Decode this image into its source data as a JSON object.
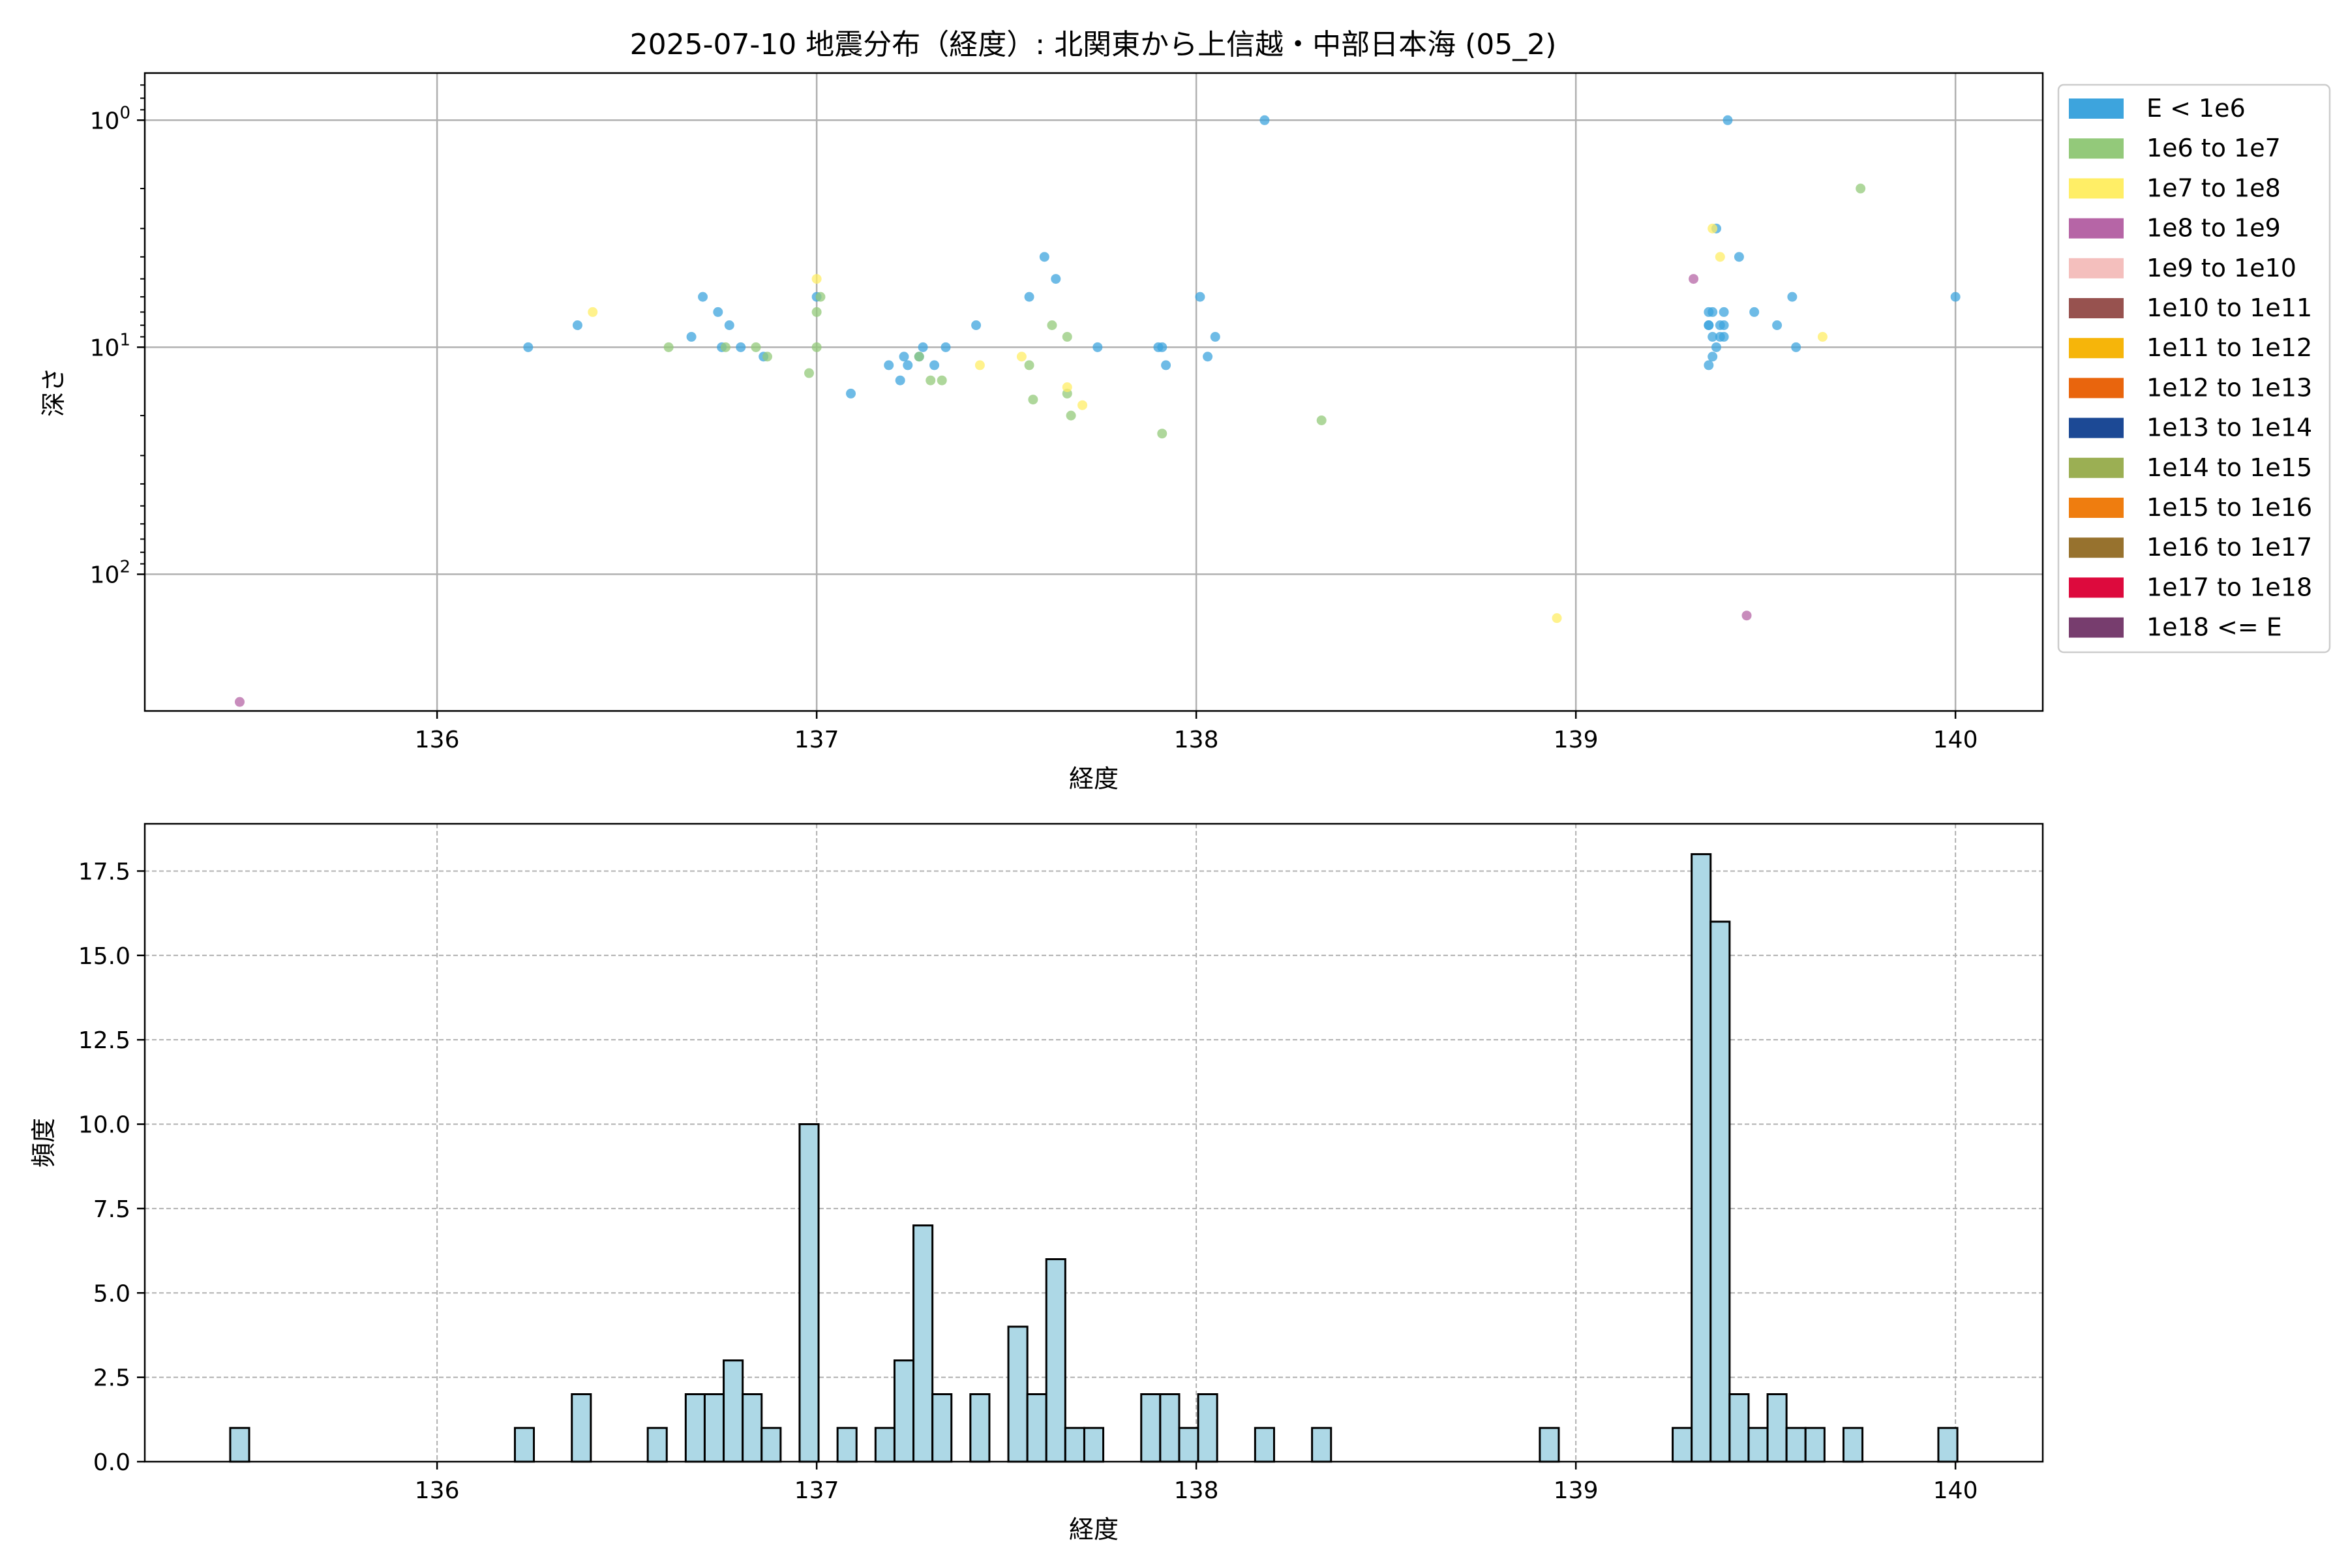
{
  "figure": {
    "title": "2025-07-10 地震分布（経度）: 北関東から上信越・中部日本海 (05_2)"
  },
  "chart_data": [
    {
      "type": "scatter",
      "title": "2025-07-10 地震分布（経度）: 北関東から上信越・中部日本海 (05_2)",
      "xlabel": "経度",
      "ylabel": "深さ",
      "xlim": [
        135.23,
        140.23
      ],
      "ylim": [
        0.62,
        400
      ],
      "y_scale": "log",
      "y_inverted": true,
      "x_ticks": [
        "136",
        "137",
        "138",
        "139",
        "140"
      ],
      "y_ticks": [
        "10^0",
        "10^1",
        "10^2"
      ],
      "grid": true,
      "legend_position": "outside-right",
      "legend": [
        {
          "label": "E < 1e6",
          "color": "#3da4dd"
        },
        {
          "label": "1e6 to 1e7",
          "color": "#93c97a"
        },
        {
          "label": "1e7 to 1e8",
          "color": "#ffee66"
        },
        {
          "label": "1e8 to 1e9",
          "color": "#b665a6"
        },
        {
          "label": "1e9 to 1e10",
          "color": "#f4bfbd"
        },
        {
          "label": "1e10 to 1e11",
          "color": "#97524f"
        },
        {
          "label": "1e11 to 1e12",
          "color": "#f6b50a"
        },
        {
          "label": "1e12 to 1e13",
          "color": "#e9650d"
        },
        {
          "label": "1e13 to 1e14",
          "color": "#1c4995"
        },
        {
          "label": "1e14 to 1e15",
          "color": "#9baf53"
        },
        {
          "label": "1e15 to 1e16",
          "color": "#ef7d0f"
        },
        {
          "label": "1e16 to 1e17",
          "color": "#97722e"
        },
        {
          "label": "1e17 to 1e18",
          "color": "#dd0a3d"
        },
        {
          "label": "1e18 <= E",
          "color": "#773d6e"
        }
      ],
      "series": [
        {
          "name": "E < 1e6",
          "color": "#3da4dd",
          "points": [
            [
              136.24,
              10
            ],
            [
              136.37,
              8
            ],
            [
              136.67,
              9
            ],
            [
              136.7,
              6
            ],
            [
              136.74,
              7
            ],
            [
              136.75,
              10
            ],
            [
              136.77,
              8
            ],
            [
              136.8,
              10
            ],
            [
              136.86,
              11
            ],
            [
              137.0,
              6
            ],
            [
              137.09,
              16
            ],
            [
              137.19,
              12
            ],
            [
              137.22,
              14
            ],
            [
              137.23,
              11
            ],
            [
              137.24,
              12
            ],
            [
              137.27,
              11
            ],
            [
              137.28,
              10
            ],
            [
              137.31,
              12
            ],
            [
              137.34,
              10
            ],
            [
              137.42,
              8
            ],
            [
              137.56,
              6
            ],
            [
              137.6,
              4
            ],
            [
              137.63,
              5
            ],
            [
              137.74,
              10
            ],
            [
              137.9,
              10
            ],
            [
              137.91,
              10
            ],
            [
              137.92,
              12
            ],
            [
              138.01,
              6
            ],
            [
              138.03,
              11
            ],
            [
              138.05,
              9
            ],
            [
              138.18,
              1
            ],
            [
              139.35,
              12
            ],
            [
              139.35,
              7
            ],
            [
              139.35,
              8
            ],
            [
              139.35,
              8
            ],
            [
              139.36,
              11
            ],
            [
              139.36,
              7
            ],
            [
              139.36,
              9
            ],
            [
              139.37,
              10
            ],
            [
              139.37,
              3
            ],
            [
              139.38,
              8
            ],
            [
              139.38,
              9
            ],
            [
              139.39,
              7
            ],
            [
              139.39,
              8
            ],
            [
              139.39,
              9
            ],
            [
              139.4,
              1
            ],
            [
              139.43,
              4
            ],
            [
              139.47,
              7
            ],
            [
              139.53,
              8
            ],
            [
              139.57,
              6
            ],
            [
              139.58,
              10
            ],
            [
              140.0,
              6
            ]
          ]
        },
        {
          "name": "1e6 to 1e7",
          "color": "#93c97a",
          "points": [
            [
              136.61,
              10
            ],
            [
              136.76,
              10
            ],
            [
              136.84,
              10
            ],
            [
              136.87,
              11
            ],
            [
              136.98,
              13
            ],
            [
              137.0,
              10
            ],
            [
              137.0,
              7
            ],
            [
              137.01,
              6
            ],
            [
              137.27,
              11
            ],
            [
              137.3,
              14
            ],
            [
              137.33,
              14
            ],
            [
              137.56,
              12
            ],
            [
              137.57,
              17
            ],
            [
              137.62,
              8
            ],
            [
              137.66,
              9
            ],
            [
              137.66,
              16
            ],
            [
              137.67,
              20
            ],
            [
              137.91,
              24
            ],
            [
              138.33,
              21
            ],
            [
              139.75,
              2
            ]
          ]
        },
        {
          "name": "1e7 to 1e8",
          "color": "#ffee66",
          "points": [
            [
              136.41,
              7
            ],
            [
              137.0,
              5
            ],
            [
              137.43,
              12
            ],
            [
              137.54,
              11
            ],
            [
              137.66,
              15
            ],
            [
              137.7,
              18
            ],
            [
              138.95,
              156
            ],
            [
              139.36,
              3
            ],
            [
              139.38,
              4
            ],
            [
              139.65,
              9
            ]
          ]
        },
        {
          "name": "1e8 to 1e9",
          "color": "#b665a6",
          "points": [
            [
              135.48,
              365
            ],
            [
              139.31,
              5
            ],
            [
              139.45,
              152
            ]
          ]
        }
      ]
    },
    {
      "type": "histogram",
      "xlabel": "経度",
      "ylabel": "頻度",
      "xlim": [
        135.23,
        140.23
      ],
      "ylim": [
        0,
        18.9
      ],
      "x_ticks": [
        "136",
        "137",
        "138",
        "139",
        "140"
      ],
      "y_ticks": [
        "0.0",
        "2.5",
        "5.0",
        "7.5",
        "10.0",
        "12.5",
        "15.0",
        "17.5"
      ],
      "grid": true,
      "bar_color": "#add8e6",
      "bin_start": 135.45,
      "bin_width": 0.05,
      "bins": [
        {
          "x": 135.48,
          "count": 1
        },
        {
          "x": 136.23,
          "count": 1
        },
        {
          "x": 136.38,
          "count": 2
        },
        {
          "x": 136.58,
          "count": 1
        },
        {
          "x": 136.68,
          "count": 2
        },
        {
          "x": 136.73,
          "count": 2
        },
        {
          "x": 136.78,
          "count": 3
        },
        {
          "x": 136.83,
          "count": 2
        },
        {
          "x": 136.88,
          "count": 1
        },
        {
          "x": 136.98,
          "count": 10
        },
        {
          "x": 137.08,
          "count": 1
        },
        {
          "x": 137.18,
          "count": 1
        },
        {
          "x": 137.23,
          "count": 3
        },
        {
          "x": 137.28,
          "count": 7
        },
        {
          "x": 137.33,
          "count": 2
        },
        {
          "x": 137.43,
          "count": 2
        },
        {
          "x": 137.53,
          "count": 4
        },
        {
          "x": 137.58,
          "count": 2
        },
        {
          "x": 137.63,
          "count": 6
        },
        {
          "x": 137.68,
          "count": 1
        },
        {
          "x": 137.73,
          "count": 1
        },
        {
          "x": 137.88,
          "count": 2
        },
        {
          "x": 137.93,
          "count": 2
        },
        {
          "x": 137.98,
          "count": 1
        },
        {
          "x": 138.03,
          "count": 2
        },
        {
          "x": 138.18,
          "count": 1
        },
        {
          "x": 138.33,
          "count": 1
        },
        {
          "x": 138.93,
          "count": 1
        },
        {
          "x": 139.28,
          "count": 1
        },
        {
          "x": 139.33,
          "count": 18
        },
        {
          "x": 139.38,
          "count": 16
        },
        {
          "x": 139.43,
          "count": 2
        },
        {
          "x": 139.48,
          "count": 1
        },
        {
          "x": 139.53,
          "count": 2
        },
        {
          "x": 139.58,
          "count": 1
        },
        {
          "x": 139.63,
          "count": 1
        },
        {
          "x": 139.73,
          "count": 1
        },
        {
          "x": 139.98,
          "count": 1
        }
      ]
    }
  ]
}
